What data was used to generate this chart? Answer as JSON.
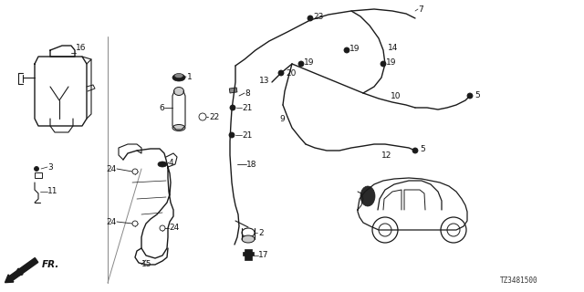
{
  "background_color": "#ffffff",
  "diagram_id": "TZ3481500",
  "lc": "#1a1a1a",
  "tc": "#111111"
}
